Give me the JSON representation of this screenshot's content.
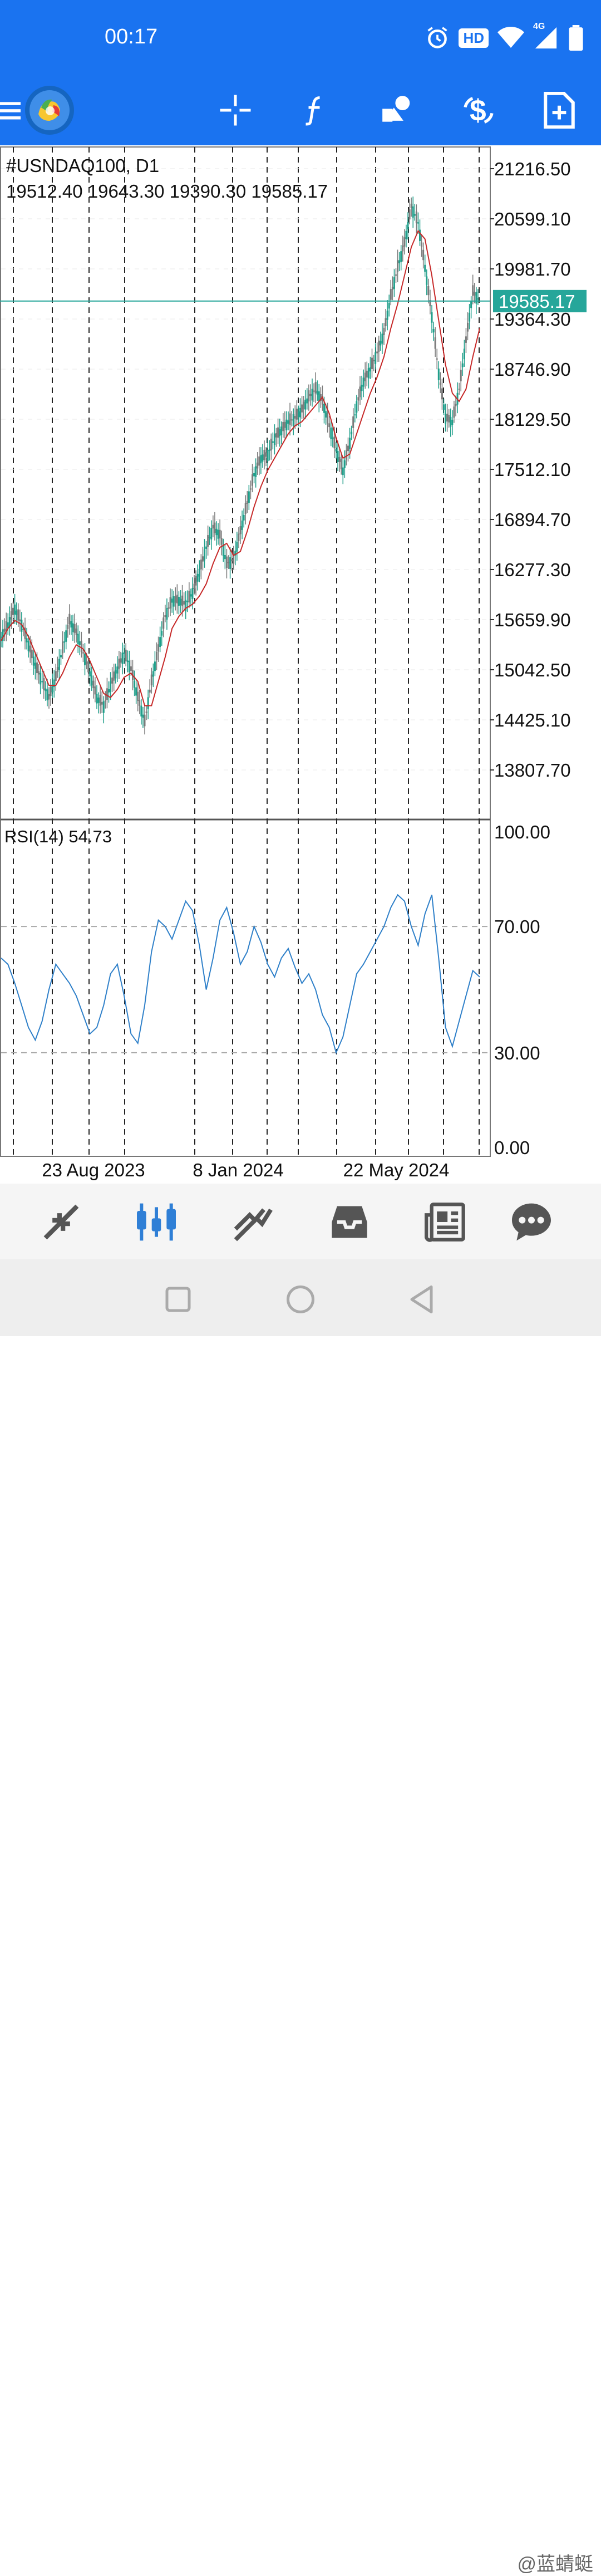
{
  "status_bar": {
    "time": "00:17",
    "badge_hd": "HD",
    "network": "4G",
    "icons": [
      "alarm-icon",
      "hd-icon",
      "wifi-icon",
      "signal-icon",
      "battery-icon"
    ]
  },
  "app_bar": {
    "icons": [
      "menu-icon",
      "app-logo",
      "crosshair-icon",
      "indicators-icon",
      "objects-icon",
      "trade-icon",
      "new-order-icon"
    ]
  },
  "main_chart": {
    "symbol_title": "#USNDAQ100, D1",
    "ohlc": "19512.40 19643.30 19390.30 19585.17",
    "current_price_label": "19585.17",
    "current_price": 19585.17,
    "price_ticks": [
      "21216.50",
      "20599.10",
      "19981.70",
      "19364.30",
      "18746.90",
      "18129.50",
      "17512.10",
      "16894.70",
      "16277.30",
      "15659.90",
      "15042.50",
      "14425.10",
      "13807.70"
    ],
    "date_ticks": [
      "23 Aug 2023",
      "8 Jan 2024",
      "22 May 2024"
    ],
    "colors": {
      "bull": "#1f9e8a",
      "bear": "#7a7a7a",
      "ma": "#c62828",
      "price_line": "#26a69a"
    }
  },
  "rsi_panel": {
    "label": "RSI(14) 54.73",
    "ticks": [
      "100.00",
      "70.00",
      "30.00",
      "0.00"
    ],
    "color": "#2f80c9"
  },
  "chart_data": [
    {
      "type": "line",
      "title": "#USNDAQ100, D1",
      "xlabel": "",
      "ylabel": "",
      "ylim": [
        13500,
        21500
      ],
      "series": [
        {
          "values": [
            15450,
            15600,
            15800,
            15600,
            15350,
            15100,
            14900,
            14700,
            14950,
            15300,
            15650,
            15500,
            15250,
            15000,
            14700,
            14600,
            14850,
            15050,
            15250,
            15050,
            14700,
            14400,
            14900,
            15300,
            15700,
            15900,
            15900,
            15850,
            16000,
            16250,
            16550,
            16800,
            16700,
            16350,
            16400,
            16750,
            17100,
            17450,
            17650,
            17700,
            17900,
            18000,
            18100,
            18150,
            18250,
            18400,
            18500,
            18350,
            18050,
            17750,
            17500,
            17850,
            18300,
            18600,
            18750,
            18950,
            19200,
            19650,
            20000,
            20300,
            20750,
            20550,
            20000,
            19400,
            18700,
            18150,
            18100,
            18500,
            19100,
            19700,
            19585
          ]
        },
        {
          "values": [
            15400,
            15550,
            15650,
            15600,
            15450,
            15250,
            15050,
            14850,
            14850,
            15000,
            15200,
            15350,
            15300,
            15150,
            14950,
            14750,
            14700,
            14800,
            14950,
            15000,
            14900,
            14600,
            14600,
            14900,
            15200,
            15550,
            15700,
            15800,
            15850,
            15950,
            16100,
            16350,
            16550,
            16600,
            16450,
            16500,
            16750,
            17050,
            17300,
            17500,
            17650,
            17800,
            17950,
            18050,
            18100,
            18200,
            18300,
            18400,
            18200,
            17900,
            17650,
            17700,
            17950,
            18200,
            18450,
            18650,
            18900,
            19250,
            19550,
            19900,
            20250,
            20450,
            20350,
            19900,
            19350,
            18800,
            18450,
            18350,
            18500,
            18900,
            19250
          ]
        }
      ]
    },
    {
      "type": "line",
      "title": "RSI(14) 54.73",
      "xlabel": "",
      "ylabel": "",
      "ylim": [
        0,
        100
      ],
      "series": [
        {
          "values": [
            60,
            58,
            52,
            45,
            38,
            34,
            40,
            50,
            58,
            55,
            52,
            48,
            42,
            36,
            38,
            45,
            55,
            58,
            48,
            36,
            33,
            45,
            62,
            72,
            70,
            66,
            72,
            78,
            75,
            64,
            50,
            60,
            72,
            76,
            68,
            58,
            62,
            70,
            65,
            58,
            54,
            60,
            63,
            57,
            52,
            55,
            50,
            42,
            38,
            30,
            35,
            45,
            55,
            58,
            62,
            66,
            70,
            76,
            80,
            78,
            70,
            64,
            74,
            80,
            60,
            38,
            32,
            40,
            48,
            56,
            54
          ]
        }
      ]
    }
  ],
  "bottom_nav": {
    "tabs": [
      "quotes-icon",
      "chart-icon",
      "trade-icon",
      "history-icon",
      "news-icon",
      "chat-icon"
    ]
  },
  "watermark": "@蓝蜻蜓"
}
